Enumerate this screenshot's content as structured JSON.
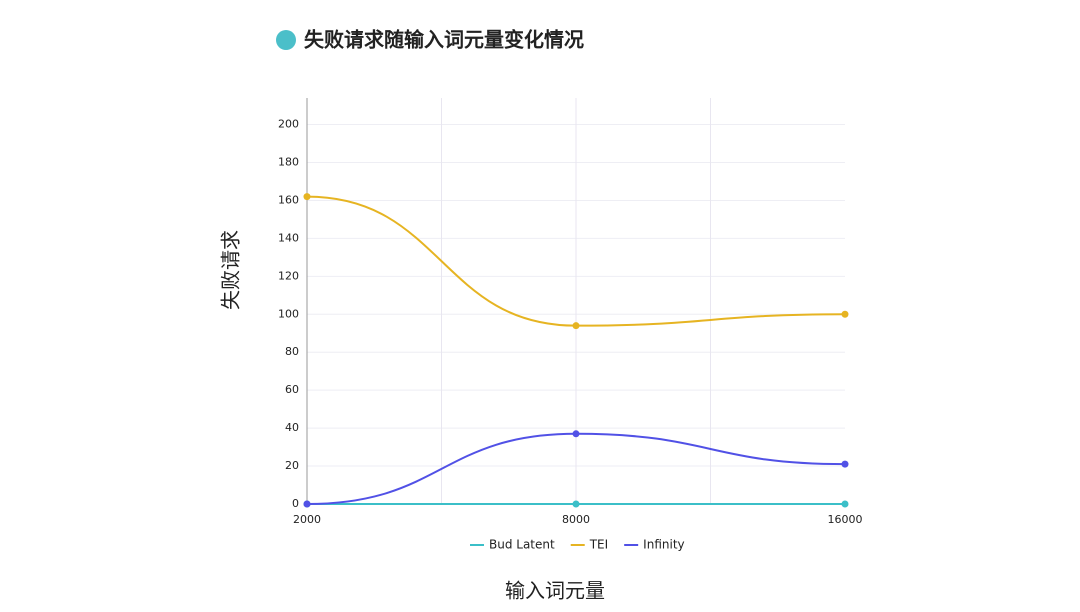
{
  "chart_data": {
    "type": "line",
    "title": "失败请求随输入词元量变化情况",
    "x_label": "输入词元量",
    "y_label": "失败请求",
    "categories": [
      "2000",
      "8000",
      "16000"
    ],
    "series": [
      {
        "name": "Bud Latent",
        "color": "#3bbfc8",
        "values": [
          0,
          0,
          0
        ]
      },
      {
        "name": "TEI",
        "color": "#e6b422",
        "values": [
          162,
          94,
          100
        ]
      },
      {
        "name": "Infinity",
        "color": "#5151e6",
        "values": [
          0,
          37,
          21
        ]
      }
    ],
    "ylim": [
      0,
      214
    ],
    "yticks": [
      0,
      20,
      40,
      60,
      80,
      100,
      120,
      140,
      160,
      180,
      200
    ],
    "grid": true,
    "legend": "bottom",
    "title_marker_color": "#4bbfc9"
  }
}
